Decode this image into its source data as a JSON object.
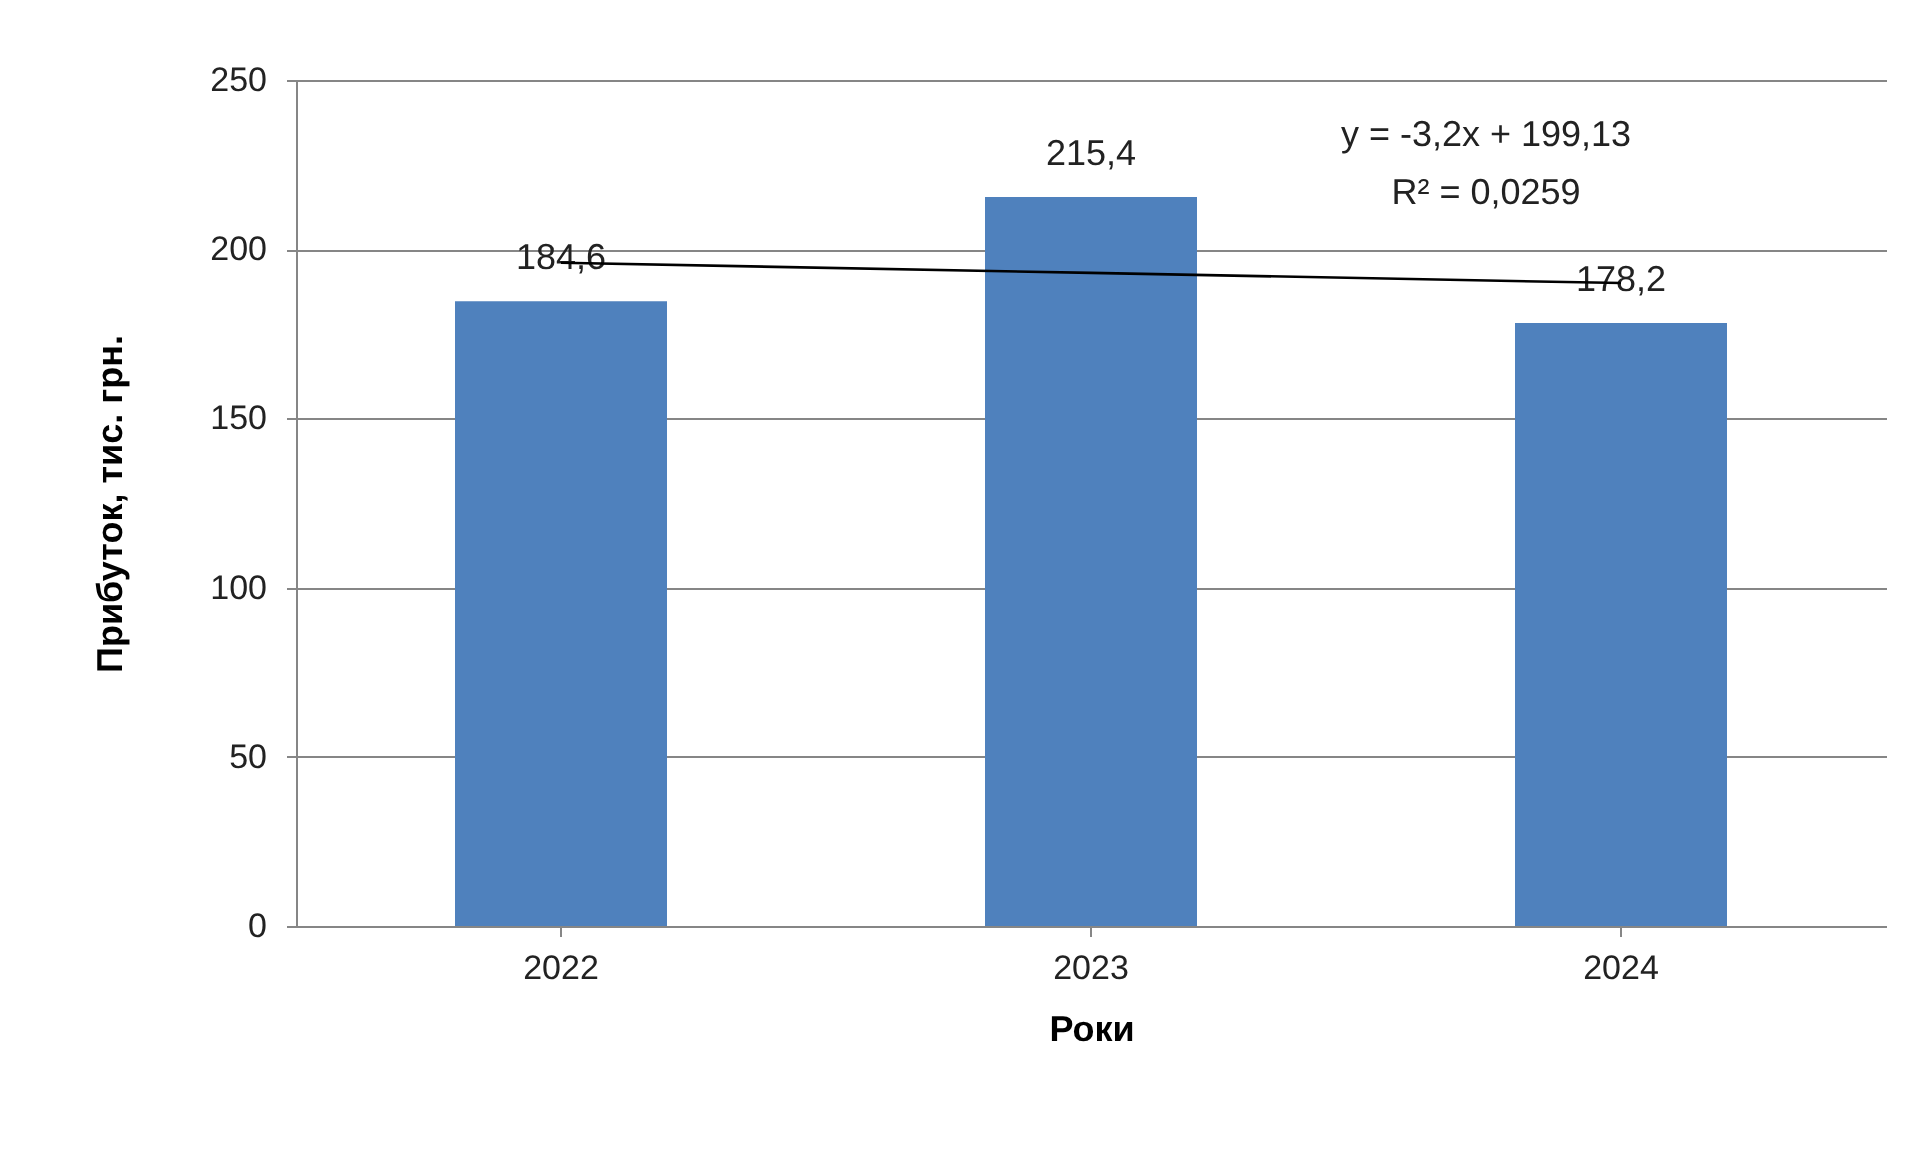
{
  "chart_data": {
    "type": "bar",
    "xlabel": "Роки",
    "ylabel": "Прибуток, тис. грн.",
    "categories": [
      "2022",
      "2023",
      "2024"
    ],
    "series": [
      {
        "color": "#4f81bd",
        "values": [
          184.6,
          215.4,
          178.2
        ],
        "value_labels": [
          "184,6",
          "215,4",
          "178,2"
        ]
      },
      {
        "type": "line",
        "color": "#000000",
        "values": [
          196,
          193,
          190
        ]
      }
    ],
    "ylim": [
      0,
      250
    ],
    "yticks": [
      0,
      50,
      100,
      150,
      200,
      250
    ],
    "grid": "y",
    "annotations": [
      "y = -3,2x + 199,13",
      "R² = 0,0259"
    ]
  }
}
